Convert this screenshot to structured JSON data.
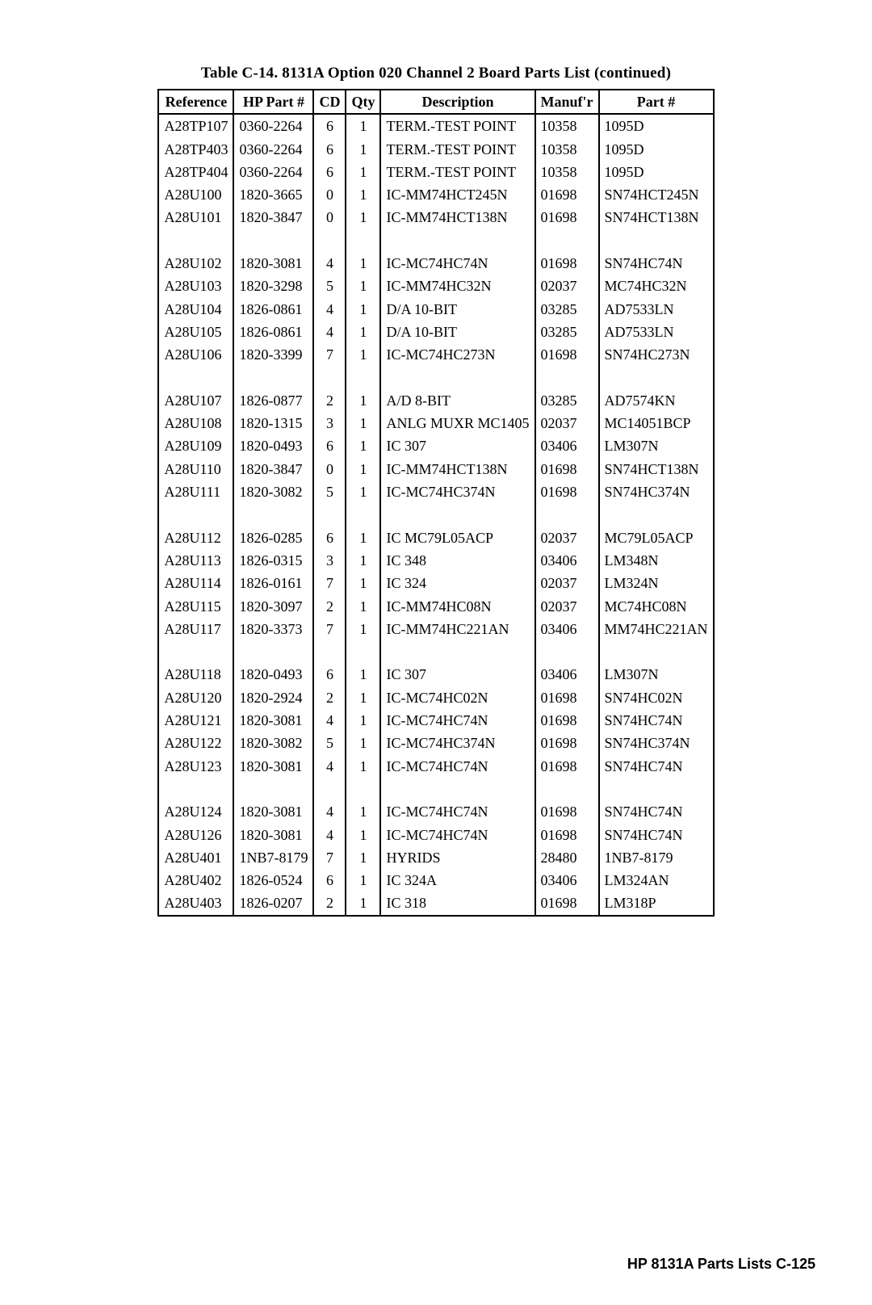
{
  "caption": "Table C-14. 8131A Option 020 Channel 2 Board Parts List (continued)",
  "columns": [
    "Reference",
    "HP Part #",
    "CD",
    "Qty",
    "Description",
    "Manuf'r",
    "Part #"
  ],
  "groups": [
    [
      {
        "ref": "A28TP107",
        "hp": "0360-2264",
        "cd": "6",
        "qty": "1",
        "desc": "TERM.-TEST POINT",
        "man": "10358",
        "part": "1095D"
      },
      {
        "ref": "A28TP403",
        "hp": "0360-2264",
        "cd": "6",
        "qty": "1",
        "desc": "TERM.-TEST POINT",
        "man": "10358",
        "part": "1095D"
      },
      {
        "ref": "A28TP404",
        "hp": "0360-2264",
        "cd": "6",
        "qty": "1",
        "desc": "TERM.-TEST POINT",
        "man": "10358",
        "part": "1095D"
      },
      {
        "ref": "A28U100",
        "hp": "1820-3665",
        "cd": "0",
        "qty": "1",
        "desc": "IC-MM74HCT245N",
        "man": "01698",
        "part": "SN74HCT245N"
      },
      {
        "ref": "A28U101",
        "hp": "1820-3847",
        "cd": "0",
        "qty": "1",
        "desc": "IC-MM74HCT138N",
        "man": "01698",
        "part": "SN74HCT138N"
      }
    ],
    [
      {
        "ref": "A28U102",
        "hp": "1820-3081",
        "cd": "4",
        "qty": "1",
        "desc": "IC-MC74HC74N",
        "man": "01698",
        "part": "SN74HC74N"
      },
      {
        "ref": "A28U103",
        "hp": "1820-3298",
        "cd": "5",
        "qty": "1",
        "desc": "IC-MM74HC32N",
        "man": "02037",
        "part": "MC74HC32N"
      },
      {
        "ref": "A28U104",
        "hp": "1826-0861",
        "cd": "4",
        "qty": "1",
        "desc": "D/A 10-BIT",
        "man": "03285",
        "part": "AD7533LN"
      },
      {
        "ref": "A28U105",
        "hp": "1826-0861",
        "cd": "4",
        "qty": "1",
        "desc": "D/A 10-BIT",
        "man": "03285",
        "part": "AD7533LN"
      },
      {
        "ref": "A28U106",
        "hp": "1820-3399",
        "cd": "7",
        "qty": "1",
        "desc": "IC-MC74HC273N",
        "man": "01698",
        "part": "SN74HC273N"
      }
    ],
    [
      {
        "ref": "A28U107",
        "hp": "1826-0877",
        "cd": "2",
        "qty": "1",
        "desc": "A/D 8-BIT",
        "man": "03285",
        "part": "AD7574KN"
      },
      {
        "ref": "A28U108",
        "hp": "1820-1315",
        "cd": "3",
        "qty": "1",
        "desc": "ANLG MUXR MC1405",
        "man": "02037",
        "part": "MC14051BCP"
      },
      {
        "ref": "A28U109",
        "hp": "1820-0493",
        "cd": "6",
        "qty": "1",
        "desc": "IC 307",
        "man": "03406",
        "part": "LM307N"
      },
      {
        "ref": "A28U110",
        "hp": "1820-3847",
        "cd": "0",
        "qty": "1",
        "desc": "IC-MM74HCT138N",
        "man": "01698",
        "part": "SN74HCT138N"
      },
      {
        "ref": "A28U111",
        "hp": "1820-3082",
        "cd": "5",
        "qty": "1",
        "desc": "IC-MC74HC374N",
        "man": "01698",
        "part": "SN74HC374N"
      }
    ],
    [
      {
        "ref": "A28U112",
        "hp": "1826-0285",
        "cd": "6",
        "qty": "1",
        "desc": "IC MC79L05ACP",
        "man": "02037",
        "part": "MC79L05ACP"
      },
      {
        "ref": "A28U113",
        "hp": "1826-0315",
        "cd": "3",
        "qty": "1",
        "desc": "IC 348",
        "man": "03406",
        "part": "LM348N"
      },
      {
        "ref": "A28U114",
        "hp": "1826-0161",
        "cd": "7",
        "qty": "1",
        "desc": "IC 324",
        "man": "02037",
        "part": "LM324N"
      },
      {
        "ref": "A28U115",
        "hp": "1820-3097",
        "cd": "2",
        "qty": "1",
        "desc": "IC-MM74HC08N",
        "man": "02037",
        "part": "MC74HC08N"
      },
      {
        "ref": "A28U117",
        "hp": "1820-3373",
        "cd": "7",
        "qty": "1",
        "desc": "IC-MM74HC221AN",
        "man": "03406",
        "part": "MM74HC221AN"
      }
    ],
    [
      {
        "ref": "A28U118",
        "hp": "1820-0493",
        "cd": "6",
        "qty": "1",
        "desc": "IC 307",
        "man": "03406",
        "part": "LM307N"
      },
      {
        "ref": "A28U120",
        "hp": "1820-2924",
        "cd": "2",
        "qty": "1",
        "desc": "IC-MC74HC02N",
        "man": "01698",
        "part": "SN74HC02N"
      },
      {
        "ref": "A28U121",
        "hp": "1820-3081",
        "cd": "4",
        "qty": "1",
        "desc": "IC-MC74HC74N",
        "man": "01698",
        "part": "SN74HC74N"
      },
      {
        "ref": "A28U122",
        "hp": "1820-3082",
        "cd": "5",
        "qty": "1",
        "desc": "IC-MC74HC374N",
        "man": "01698",
        "part": "SN74HC374N"
      },
      {
        "ref": "A28U123",
        "hp": "1820-3081",
        "cd": "4",
        "qty": "1",
        "desc": "IC-MC74HC74N",
        "man": "01698",
        "part": "SN74HC74N"
      }
    ],
    [
      {
        "ref": "A28U124",
        "hp": "1820-3081",
        "cd": "4",
        "qty": "1",
        "desc": "IC-MC74HC74N",
        "man": "01698",
        "part": "SN74HC74N"
      },
      {
        "ref": "A28U126",
        "hp": "1820-3081",
        "cd": "4",
        "qty": "1",
        "desc": "IC-MC74HC74N",
        "man": "01698",
        "part": "SN74HC74N"
      },
      {
        "ref": "A28U401",
        "hp": "1NB7-8179",
        "cd": "7",
        "qty": "1",
        "desc": "HYRIDS",
        "man": "28480",
        "part": "1NB7-8179"
      },
      {
        "ref": "A28U402",
        "hp": "1826-0524",
        "cd": "6",
        "qty": "1",
        "desc": "IC 324A",
        "man": "03406",
        "part": "LM324AN"
      },
      {
        "ref": "A28U403",
        "hp": "1826-0207",
        "cd": "2",
        "qty": "1",
        "desc": "IC 318",
        "man": "01698",
        "part": "LM318P"
      }
    ]
  ],
  "footer": "HP 8131A Parts Lists   C-125"
}
